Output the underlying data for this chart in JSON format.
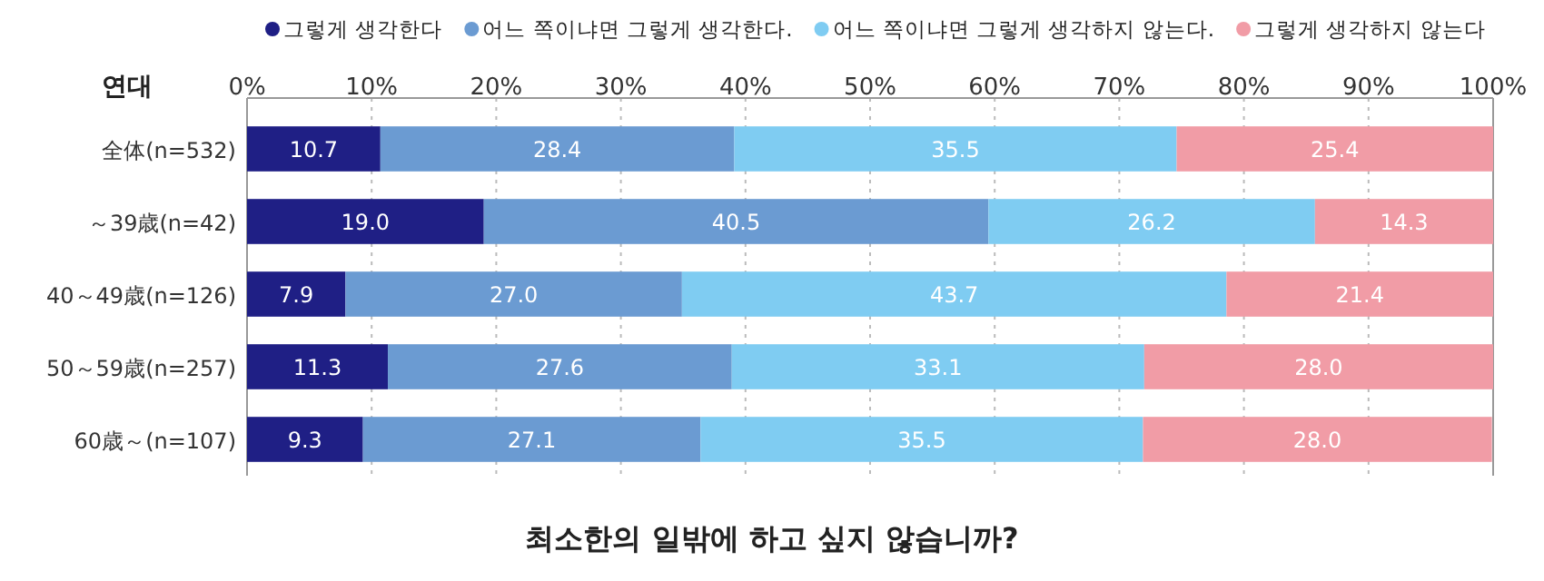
{
  "chart_data": {
    "type": "bar",
    "orientation": "horizontal",
    "stacked": true,
    "grid": "x",
    "legend": "top",
    "title": "최소한의 일밖에 하고 싶지 않습니까?",
    "ylabel": "연대",
    "categories": [
      "全体(n=532)",
      "～39歳(n=42)",
      "40～49歳(n=126)",
      "50～59歳(n=257)",
      "60歳～(n=107)"
    ],
    "xlim": [
      0,
      100
    ],
    "xticks": [
      {
        "value": 0,
        "label": "0%"
      },
      {
        "value": 10,
        "label": "10%"
      },
      {
        "value": 20,
        "label": "20%"
      },
      {
        "value": 30,
        "label": "30%"
      },
      {
        "value": 40,
        "label": "40%"
      },
      {
        "value": 50,
        "label": "50%"
      },
      {
        "value": 60,
        "label": "60%"
      },
      {
        "value": 70,
        "label": "70%"
      },
      {
        "value": 80,
        "label": "80%"
      },
      {
        "value": 90,
        "label": "90%"
      },
      {
        "value": 100,
        "label": "100%"
      }
    ],
    "series": [
      {
        "name": "그렇게 생각한다",
        "color": "#1f1f85",
        "values": [
          10.7,
          19.0,
          7.9,
          11.3,
          9.3
        ],
        "value_labels": [
          "10.7",
          "19.0",
          "7.9",
          "11.3",
          "9.3"
        ]
      },
      {
        "name": "어느 쪽이냐면 그렇게 생각한다.",
        "color": "#6b9bd2",
        "values": [
          28.4,
          40.5,
          27.0,
          27.6,
          27.1
        ],
        "value_labels": [
          "28.4",
          "40.5",
          "27.0",
          "27.6",
          "27.1"
        ]
      },
      {
        "name": "어느 쪽이냐면 그렇게 생각하지 않는다.",
        "color": "#7fccf2",
        "values": [
          35.5,
          26.2,
          43.7,
          33.1,
          35.5
        ],
        "value_labels": [
          "35.5",
          "26.2",
          "43.7",
          "33.1",
          "35.5"
        ]
      },
      {
        "name": "그렇게 생각하지 않는다",
        "color": "#f19ca6",
        "values": [
          25.4,
          14.3,
          21.4,
          28.0,
          28.0
        ],
        "value_labels": [
          "25.4",
          "14.3",
          "21.4",
          "28.0",
          "28.0"
        ]
      }
    ]
  }
}
